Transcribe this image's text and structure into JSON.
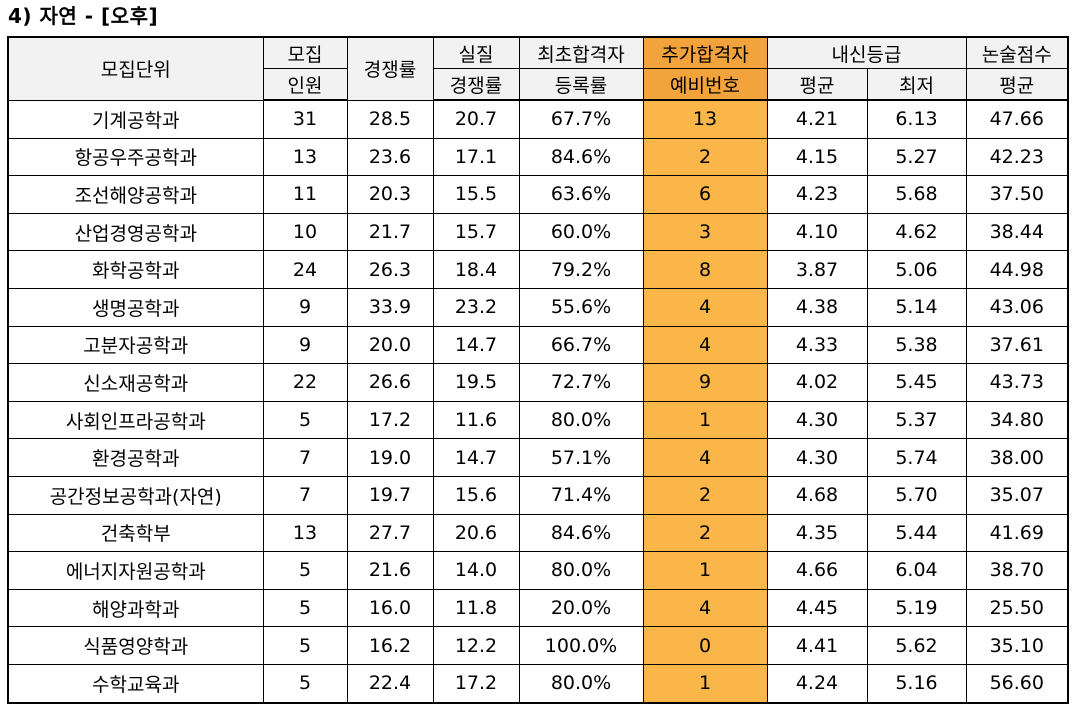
{
  "title": "4) 자연 - [오후]",
  "headers": {
    "unit": "모집단위",
    "quota": [
      "모집",
      "인원"
    ],
    "competition": "경쟁률",
    "real_competition": [
      "실질",
      "경쟁률"
    ],
    "first_pass_rate": [
      "최초합격자",
      "등록률"
    ],
    "extra_pass": [
      "추가합격자",
      "예비번호"
    ],
    "grade": "내신등급",
    "grade_avg": "평균",
    "grade_min": "최저",
    "essay": "논술점수",
    "essay_avg": "평균"
  },
  "highlight_color": "#fbb64a",
  "rows": [
    [
      "기계공학과",
      "31",
      "28.5",
      "20.7",
      "67.7%",
      "13",
      "4.21",
      "6.13",
      "47.66"
    ],
    [
      "항공우주공학과",
      "13",
      "23.6",
      "17.1",
      "84.6%",
      "2",
      "4.15",
      "5.27",
      "42.23"
    ],
    [
      "조선해양공학과",
      "11",
      "20.3",
      "15.5",
      "63.6%",
      "6",
      "4.23",
      "5.68",
      "37.50"
    ],
    [
      "산업경영공학과",
      "10",
      "21.7",
      "15.7",
      "60.0%",
      "3",
      "4.10",
      "4.62",
      "38.44"
    ],
    [
      "화학공학과",
      "24",
      "26.3",
      "18.4",
      "79.2%",
      "8",
      "3.87",
      "5.06",
      "44.98"
    ],
    [
      "생명공학과",
      "9",
      "33.9",
      "23.2",
      "55.6%",
      "4",
      "4.38",
      "5.14",
      "43.06"
    ],
    [
      "고분자공학과",
      "9",
      "20.0",
      "14.7",
      "66.7%",
      "4",
      "4.33",
      "5.38",
      "37.61"
    ],
    [
      "신소재공학과",
      "22",
      "26.6",
      "19.5",
      "72.7%",
      "9",
      "4.02",
      "5.45",
      "43.73"
    ],
    [
      "사회인프라공학과",
      "5",
      "17.2",
      "11.6",
      "80.0%",
      "1",
      "4.30",
      "5.37",
      "34.80"
    ],
    [
      "환경공학과",
      "7",
      "19.0",
      "14.7",
      "57.1%",
      "4",
      "4.30",
      "5.74",
      "38.00"
    ],
    [
      "공간정보공학과(자연)",
      "7",
      "19.7",
      "15.6",
      "71.4%",
      "2",
      "4.68",
      "5.70",
      "35.07"
    ],
    [
      "건축학부",
      "13",
      "27.7",
      "20.6",
      "84.6%",
      "2",
      "4.35",
      "5.44",
      "41.69"
    ],
    [
      "에너지자원공학과",
      "5",
      "21.6",
      "14.0",
      "80.0%",
      "1",
      "4.66",
      "6.04",
      "38.70"
    ],
    [
      "해양과학과",
      "5",
      "16.0",
      "11.8",
      "20.0%",
      "4",
      "4.45",
      "5.19",
      "25.50"
    ],
    [
      "식품영양학과",
      "5",
      "16.2",
      "12.2",
      "100.0%",
      "0",
      "4.41",
      "5.62",
      "35.10"
    ],
    [
      "수학교육과",
      "5",
      "22.4",
      "17.2",
      "80.0%",
      "1",
      "4.24",
      "5.16",
      "56.60"
    ]
  ]
}
